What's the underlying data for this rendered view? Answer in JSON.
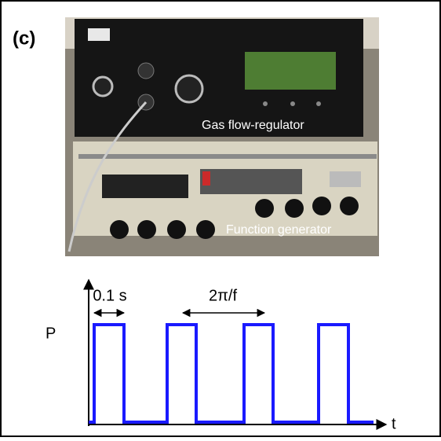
{
  "panel_label": "(c)",
  "photo": {
    "labels": [
      "Gas flow-regulator",
      "Function generator"
    ]
  },
  "waveform": {
    "y_label": "P",
    "x_label": "t",
    "pulse_width_label": "0.1 s",
    "period_label": "2π/f"
  }
}
